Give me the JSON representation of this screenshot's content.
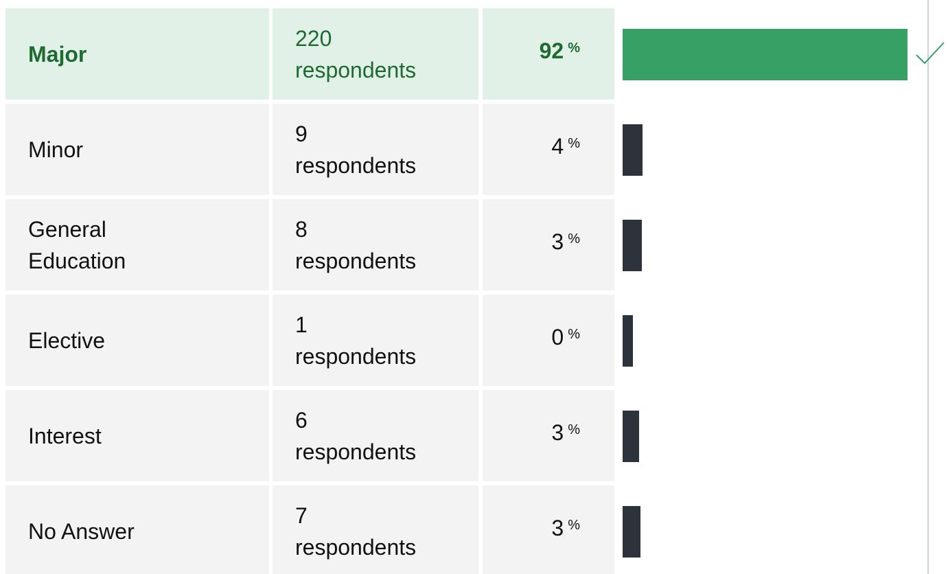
{
  "rows": [
    {
      "label": "Major",
      "count": 220,
      "unit": "respondents",
      "percent": 92,
      "percent_sign": "%"
    },
    {
      "label": "Minor",
      "count": 9,
      "unit": "respondents",
      "percent": 4,
      "percent_sign": "%"
    },
    {
      "label": "General Education",
      "count": 8,
      "unit": "respondents",
      "percent": 3,
      "percent_sign": "%"
    },
    {
      "label": "Elective",
      "count": 1,
      "unit": "respondents",
      "percent": 0,
      "percent_sign": "%"
    },
    {
      "label": "Interest",
      "count": 6,
      "unit": "respondents",
      "percent": 3,
      "percent_sign": "%"
    },
    {
      "label": "No Answer",
      "count": 7,
      "unit": "respondents",
      "percent": 3,
      "percent_sign": "%"
    }
  ]
}
